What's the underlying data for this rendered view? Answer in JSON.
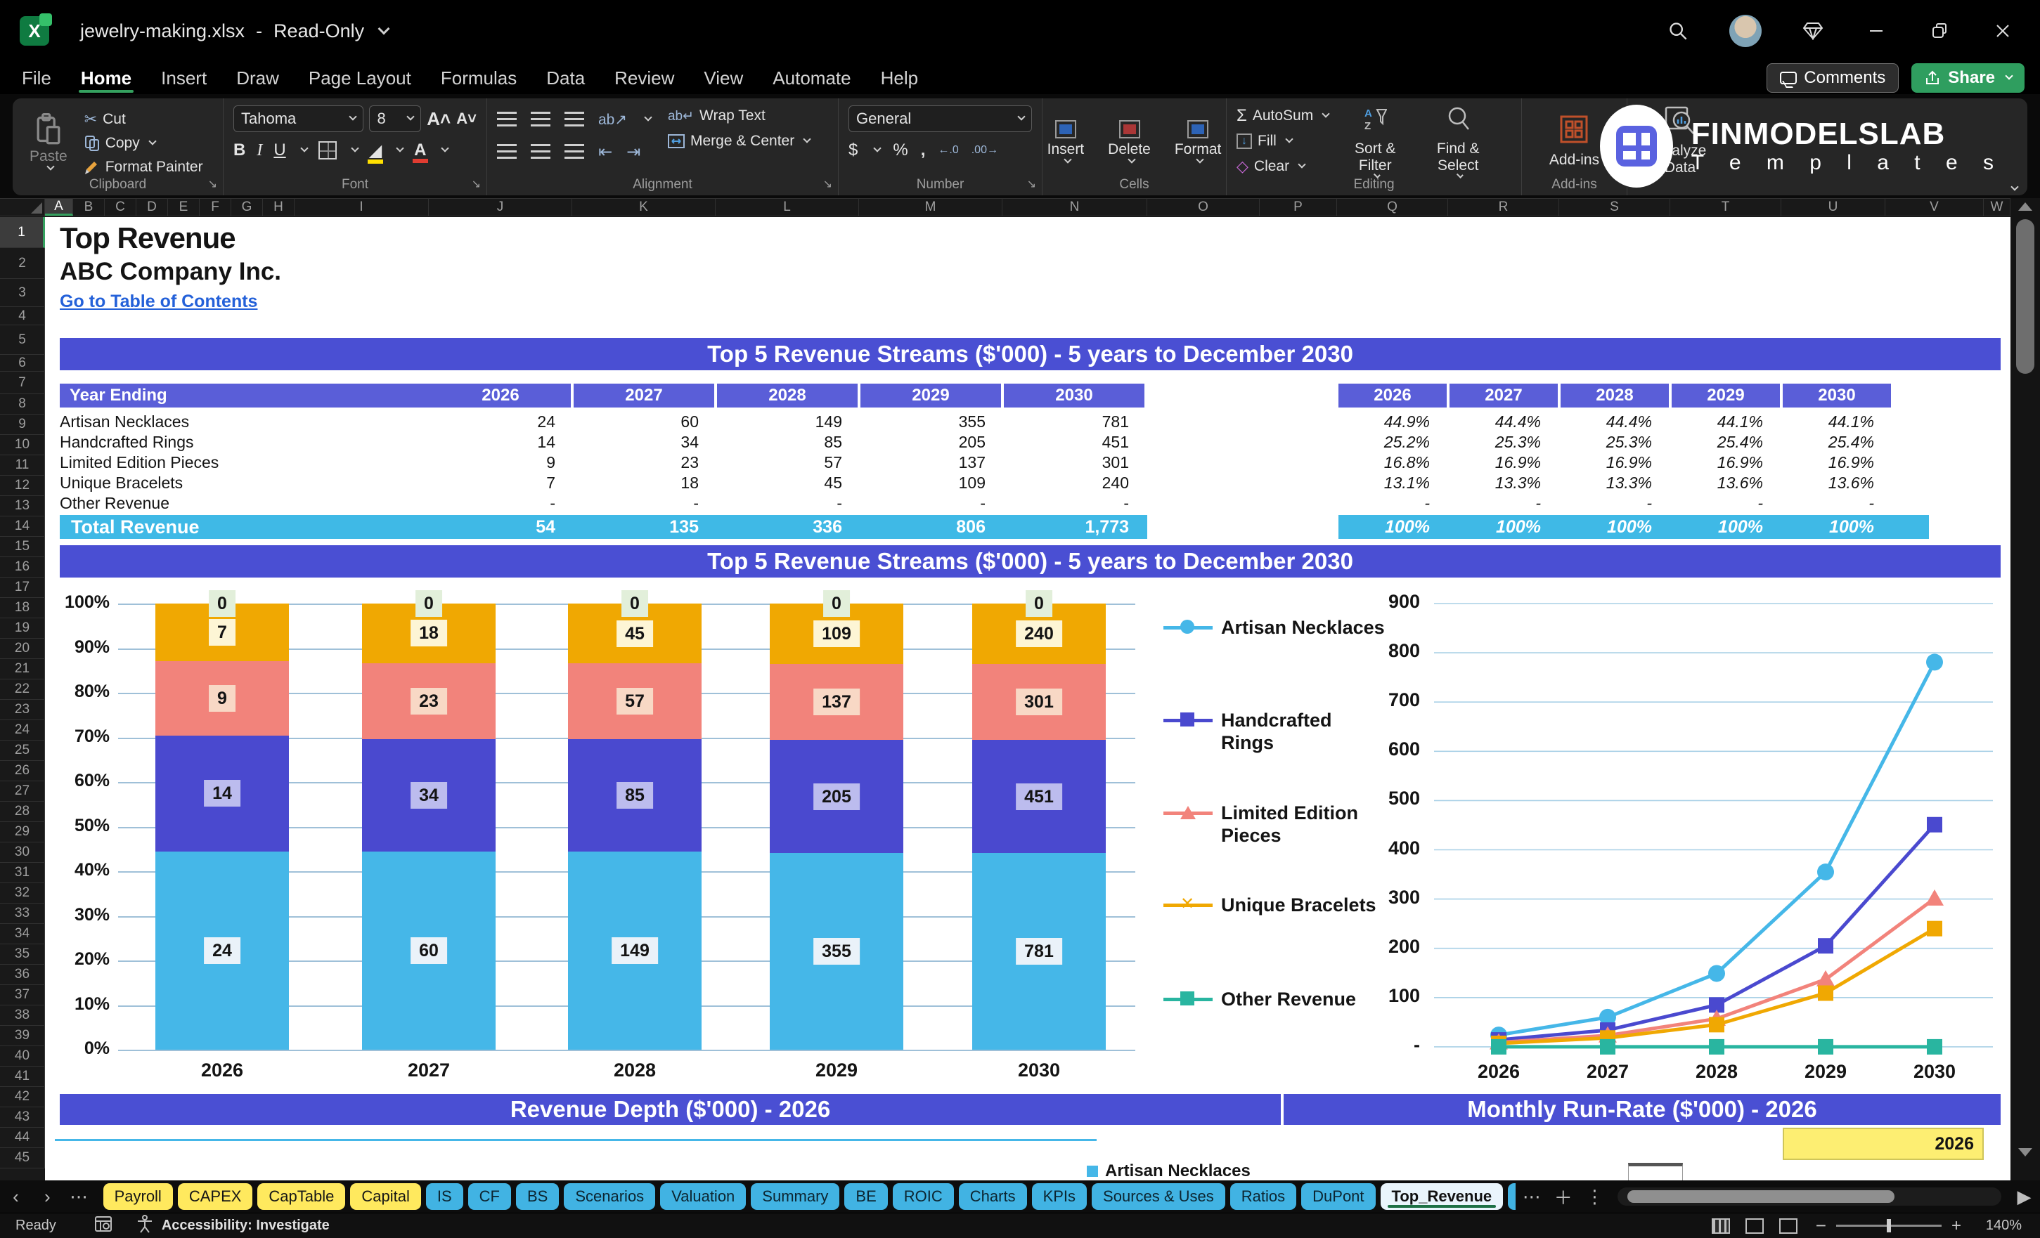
{
  "window": {
    "file": "jewelry-making.xlsx",
    "sep": "-",
    "mode": "Read-Only"
  },
  "menu": {
    "items": [
      "File",
      "Home",
      "Insert",
      "Draw",
      "Page Layout",
      "Formulas",
      "Data",
      "Review",
      "View",
      "Automate",
      "Help"
    ],
    "active": "Home",
    "comments": "Comments",
    "share": "Share"
  },
  "ribbon": {
    "clipboard": {
      "paste": "Paste",
      "cut": "Cut",
      "copy": "Copy",
      "format_painter": "Format Painter",
      "group": "Clipboard"
    },
    "font": {
      "family": "Tahoma",
      "size": "8",
      "group": "Font"
    },
    "alignment": {
      "wrap": "Wrap Text",
      "merge": "Merge & Center",
      "group": "Alignment"
    },
    "number": {
      "format": "General",
      "group": "Number"
    },
    "cells": {
      "insert": "Insert",
      "delete": "Delete",
      "format": "Format",
      "group": "Cells"
    },
    "editing": {
      "autosum": "AutoSum",
      "fill": "Fill",
      "clear": "Clear",
      "sort": "Sort & Filter",
      "find": "Find & Select",
      "group": "Editing"
    },
    "addins": {
      "label": "Add-ins",
      "group": "Add-ins"
    },
    "analyze": {
      "label": "Analyze Data"
    }
  },
  "brand": {
    "name": "FINMODELSLAB",
    "sub": "T e m p l a t e s"
  },
  "grid": {
    "columns": [
      "A",
      "B",
      "C",
      "D",
      "E",
      "F",
      "G",
      "H",
      "I",
      "J",
      "K",
      "L",
      "M",
      "N",
      "O",
      "P",
      "Q",
      "R",
      "S",
      "T",
      "U",
      "V",
      "W"
    ],
    "selected_column": "A",
    "row_count": 45,
    "selected_row": "1"
  },
  "sheet": {
    "title": "Top Revenue",
    "company": "ABC Company Inc.",
    "link": "Go to Table of Contents",
    "section1": "Top 5 Revenue Streams ($'000) - 5 years to December 2030",
    "section2": "Top 5 Revenue Streams ($'000) - 5 years to December 2030",
    "section3": "Revenue Depth ($'000) - 2026",
    "section4": "Monthly Run-Rate ($'000) - 2026",
    "runrate_year": "2026",
    "depth_legend": "Artisan Necklaces"
  },
  "table": {
    "header_label": "Year Ending",
    "years": [
      "2026",
      "2027",
      "2028",
      "2029",
      "2030"
    ],
    "rows": [
      {
        "label": "Artisan Necklaces",
        "values": [
          "24",
          "60",
          "149",
          "355",
          "781"
        ],
        "pcts": [
          "44.9%",
          "44.4%",
          "44.4%",
          "44.1%",
          "44.1%"
        ]
      },
      {
        "label": "Handcrafted Rings",
        "values": [
          "14",
          "34",
          "85",
          "205",
          "451"
        ],
        "pcts": [
          "25.2%",
          "25.3%",
          "25.3%",
          "25.4%",
          "25.4%"
        ]
      },
      {
        "label": "Limited Edition Pieces",
        "values": [
          "9",
          "23",
          "57",
          "137",
          "301"
        ],
        "pcts": [
          "16.8%",
          "16.9%",
          "16.9%",
          "16.9%",
          "16.9%"
        ]
      },
      {
        "label": "Unique Bracelets",
        "values": [
          "7",
          "18",
          "45",
          "109",
          "240"
        ],
        "pcts": [
          "13.1%",
          "13.3%",
          "13.3%",
          "13.6%",
          "13.6%"
        ]
      },
      {
        "label": "Other Revenue",
        "values": [
          "-",
          "-",
          "-",
          "-",
          "-"
        ],
        "pcts": [
          "-",
          "-",
          "-",
          "-",
          "-"
        ]
      }
    ],
    "total": {
      "label": "Total Revenue",
      "values": [
        "54",
        "135",
        "336",
        "806",
        "1,773"
      ],
      "pcts": [
        "100%",
        "100%",
        "100%",
        "100%",
        "100%"
      ]
    }
  },
  "chart_data": [
    {
      "type": "bar",
      "subtype": "percent-stacked",
      "title": "Top 5 Revenue Streams ($'000) - 5 years to December 2030",
      "categories": [
        "2026",
        "2027",
        "2028",
        "2029",
        "2030"
      ],
      "series": [
        {
          "name": "Artisan Necklaces",
          "color": "#45b7e8",
          "label_bg": "#eaf2f9",
          "marker": "circle",
          "values": [
            24,
            60,
            149,
            355,
            781
          ]
        },
        {
          "name": "Handcrafted Rings",
          "color": "#4a49cf",
          "label_bg": "#bcbcee",
          "marker": "square",
          "values": [
            14,
            34,
            85,
            205,
            451
          ]
        },
        {
          "name": "Limited Edition Pieces",
          "color": "#f2837b",
          "label_bg": "#f8d8c5",
          "marker": "triangle",
          "values": [
            9,
            23,
            57,
            137,
            301
          ]
        },
        {
          "name": "Unique Bracelets",
          "color": "#f0a802",
          "label_bg": "#fdf5d5",
          "marker": "x",
          "values": [
            7,
            18,
            45,
            109,
            240
          ]
        },
        {
          "name": "Other Revenue",
          "color": "#29b5a0",
          "label_bg": "#e2efda",
          "marker": "square",
          "values": [
            0,
            0,
            0,
            0,
            0
          ]
        }
      ],
      "y_ticks": [
        "0%",
        "10%",
        "20%",
        "30%",
        "40%",
        "50%",
        "60%",
        "70%",
        "80%",
        "90%",
        "100%"
      ],
      "ylim": [
        0,
        100
      ],
      "grid": true,
      "legend_position": "right"
    },
    {
      "type": "line",
      "categories": [
        "2026",
        "2027",
        "2028",
        "2029",
        "2030"
      ],
      "series": [
        {
          "name": "Artisan Necklaces",
          "color": "#45b7e8",
          "marker": "circle",
          "values": [
            24,
            60,
            149,
            355,
            781
          ]
        },
        {
          "name": "Handcrafted Rings",
          "color": "#4a49cf",
          "marker": "square",
          "values": [
            14,
            34,
            85,
            205,
            451
          ]
        },
        {
          "name": "Limited Edition Pieces",
          "color": "#f2837b",
          "marker": "triangle",
          "values": [
            9,
            23,
            57,
            137,
            301
          ]
        },
        {
          "name": "Unique Bracelets",
          "color": "#f0a802",
          "marker": "square",
          "values": [
            7,
            18,
            45,
            109,
            240
          ]
        },
        {
          "name": "Other Revenue",
          "color": "#29b5a0",
          "marker": "square",
          "values": [
            0,
            0,
            0,
            0,
            0
          ]
        }
      ],
      "y_ticks": [
        "-",
        "100",
        "200",
        "300",
        "400",
        "500",
        "600",
        "700",
        "800",
        "900"
      ],
      "ylim": [
        0,
        900
      ],
      "grid": true
    }
  ],
  "tabs": {
    "list": [
      {
        "label": "Payroll",
        "color": "yellow"
      },
      {
        "label": "CAPEX",
        "color": "yellow"
      },
      {
        "label": "CapTable",
        "color": "yellow"
      },
      {
        "label": "Capital",
        "color": "yellow"
      },
      {
        "label": "IS",
        "color": "blue"
      },
      {
        "label": "CF",
        "color": "blue"
      },
      {
        "label": "BS",
        "color": "blue"
      },
      {
        "label": "Scenarios",
        "color": "blue"
      },
      {
        "label": "Valuation",
        "color": "blue"
      },
      {
        "label": "Summary",
        "color": "blue"
      },
      {
        "label": "BE",
        "color": "blue"
      },
      {
        "label": "ROIC",
        "color": "blue"
      },
      {
        "label": "Charts",
        "color": "blue"
      },
      {
        "label": "KPIs",
        "color": "blue"
      },
      {
        "label": "Sources & Uses",
        "color": "blue"
      },
      {
        "label": "Ratios",
        "color": "blue"
      },
      {
        "label": "DuPont",
        "color": "blue"
      },
      {
        "label": "Top_Revenue",
        "color": "active"
      },
      {
        "label": "To",
        "color": "blue"
      }
    ]
  },
  "status": {
    "ready": "Ready",
    "accessibility": "Accessibility: Investigate",
    "zoom": "140%"
  }
}
